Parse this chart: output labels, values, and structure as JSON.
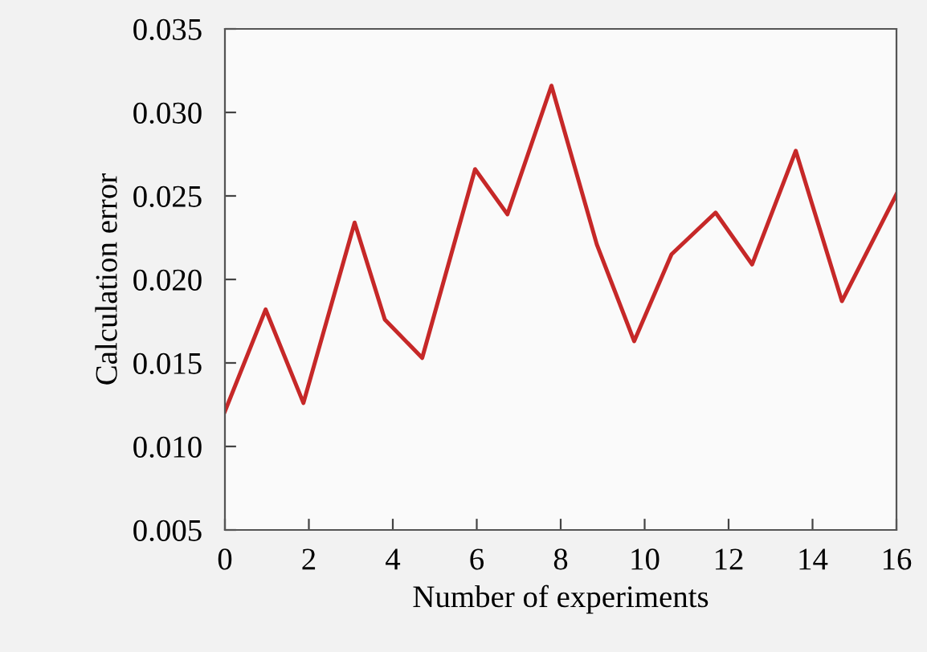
{
  "chart_data": {
    "type": "line",
    "xlabel": "Number of experiments",
    "ylabel": "Calculation error",
    "x": [
      0,
      0.97,
      1.87,
      3.09,
      3.81,
      4.7,
      5.96,
      6.73,
      7.78,
      8.86,
      9.75,
      10.64,
      11.69,
      12.56,
      13.6,
      14.7,
      16
    ],
    "series": [
      {
        "color": "#c62828",
        "values": [
          0.0121,
          0.0182,
          0.0126,
          0.0234,
          0.0176,
          0.0153,
          0.0266,
          0.0239,
          0.0316,
          0.0221,
          0.0163,
          0.0215,
          0.024,
          0.0209,
          0.0277,
          0.0187,
          0.0251
        ]
      }
    ],
    "xlim": [
      0,
      16
    ],
    "xticks": [
      0,
      2,
      4,
      6,
      8,
      10,
      12,
      14,
      16
    ],
    "ylim": [
      0.005,
      0.035
    ],
    "yticks": [
      {
        "value": 0.005,
        "label": "0.005"
      },
      {
        "value": 0.01,
        "label": "0.010"
      },
      {
        "value": 0.015,
        "label": "0.015"
      },
      {
        "value": 0.02,
        "label": "0.020"
      },
      {
        "value": 0.025,
        "label": "0.025"
      },
      {
        "value": 0.03,
        "label": "0.030"
      },
      {
        "value": 0.035,
        "label": "0.035"
      }
    ],
    "grid": false,
    "legend": false,
    "marker": "none",
    "line_style": "solid"
  }
}
